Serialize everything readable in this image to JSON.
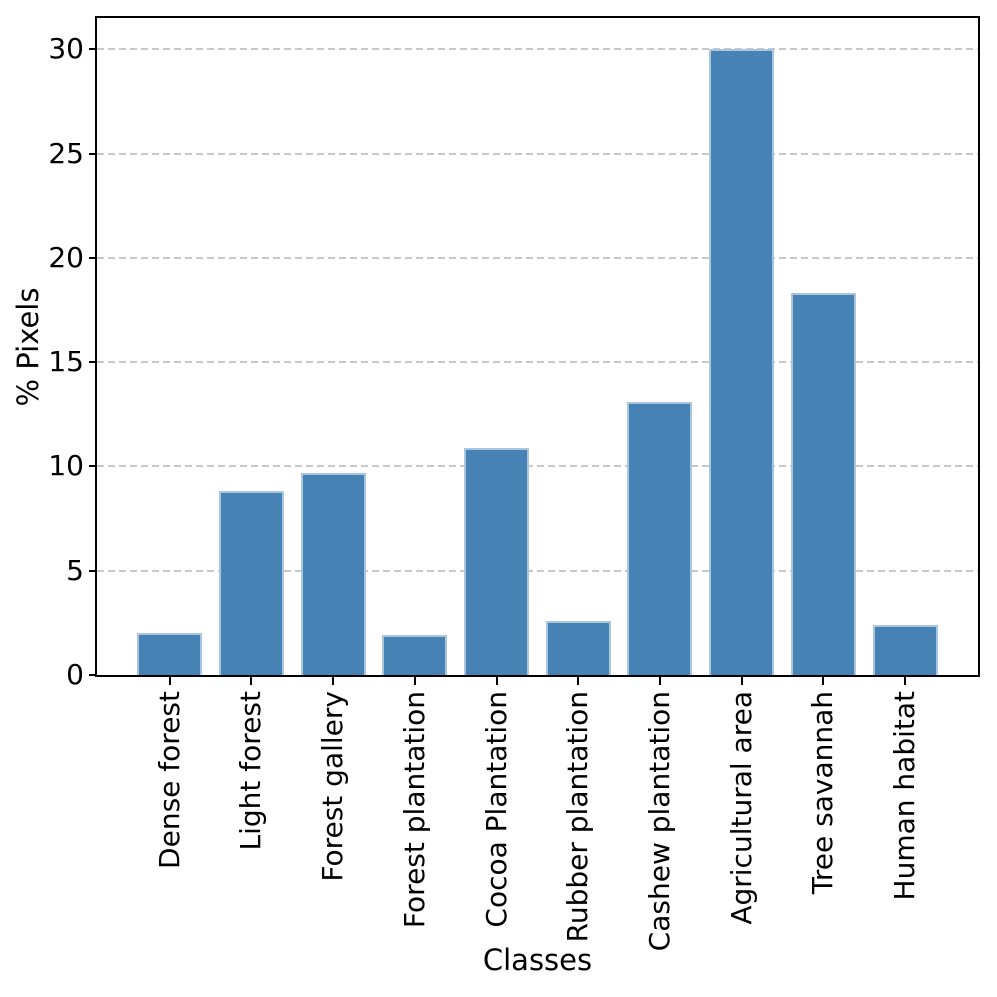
{
  "figure": {
    "background": "#ffffff"
  },
  "chart_data": {
    "type": "bar",
    "title": "",
    "xlabel": "Classes",
    "ylabel": "% Pixels",
    "categories": [
      "Dense forest",
      "Light forest",
      "Forest gallery",
      "Forest plantation",
      "Cocoa Plantation",
      "Rubber plantation",
      "Cashew plantation",
      "Agricultural area",
      "Tree savannah",
      "Human habitat"
    ],
    "values": [
      2.0,
      8.8,
      9.7,
      1.9,
      10.9,
      2.6,
      13.1,
      30.0,
      18.3,
      2.4
    ],
    "yticks": [
      0,
      5,
      10,
      15,
      20,
      25,
      30
    ],
    "ylim": [
      0,
      31.5
    ],
    "grid": "horizontal-dashed-behind-bars",
    "legend": "none",
    "bar_color": "#4682b4",
    "bar_edge_color": "#a9c6e0",
    "grid_color": "#c8c8c8",
    "spine_color": "#000000",
    "text_color": "#000000"
  }
}
